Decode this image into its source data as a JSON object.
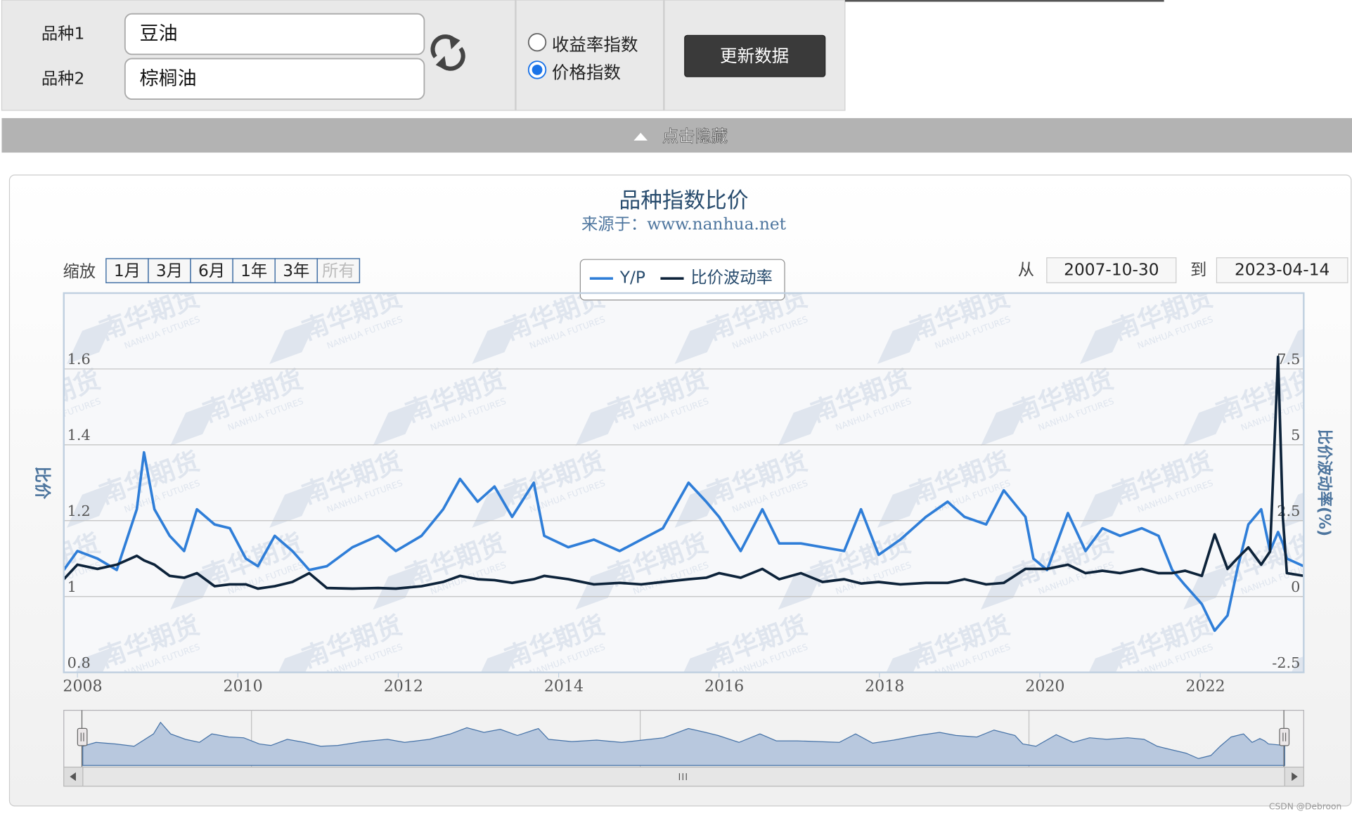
{
  "form": {
    "field_labels": [
      "品种1",
      "品种2"
    ],
    "field_values": [
      "豆油",
      "棕榈油"
    ],
    "index_type": {
      "options": [
        "收益率指数",
        "价格指数"
      ],
      "selected": "价格指数"
    },
    "button": "更新数据",
    "toggle": "点击隐藏"
  },
  "chart_data": {
    "type": "line",
    "title": "品种指数比价",
    "subtitle": "来源于：www.nanhua.net",
    "y_label": "比价",
    "y2_label": "比价波动率(%)",
    "range_selector": {
      "label": "缩放",
      "buttons": [
        "1月",
        "3月",
        "6月",
        "1年",
        "3年",
        "所有"
      ],
      "selected": "所有",
      "from_label": "从",
      "from": "2007-10-30",
      "to_label": "到",
      "to": "2023-04-14"
    },
    "legend": "top-center",
    "grid": true,
    "xlim": [
      2007.83,
      2023.29
    ],
    "xticks": [
      2008,
      2010,
      2012,
      2014,
      2016,
      2018,
      2020,
      2022
    ],
    "ylim": [
      0.8,
      1.8
    ],
    "yticks": [
      0.8,
      1,
      1.2,
      1.4,
      1.6
    ],
    "y2lim": [
      -2.5,
      10
    ],
    "y2ticks": [
      -2.5,
      0,
      2.5,
      5,
      7.5
    ],
    "navigator_xticks": [
      2010,
      2015,
      2020
    ],
    "watermark": {
      "cn": "南华期货",
      "en": "NANHUA FUTURES"
    },
    "x": [
      2007.83,
      2008.0,
      2008.25,
      2008.49,
      2008.74,
      2008.83,
      2008.96,
      2009.15,
      2009.33,
      2009.49,
      2009.71,
      2009.9,
      2010.1,
      2010.25,
      2010.46,
      2010.68,
      2010.89,
      2011.11,
      2011.43,
      2011.75,
      2011.97,
      2012.29,
      2012.56,
      2012.77,
      2012.99,
      2013.2,
      2013.42,
      2013.69,
      2013.82,
      2014.12,
      2014.44,
      2014.76,
      2015.03,
      2015.3,
      2015.62,
      2015.84,
      2016.0,
      2016.27,
      2016.54,
      2016.75,
      2017.02,
      2017.29,
      2017.56,
      2017.77,
      2017.99,
      2018.26,
      2018.58,
      2018.85,
      2019.06,
      2019.33,
      2019.55,
      2019.82,
      2019.92,
      2020.09,
      2020.35,
      2020.57,
      2020.78,
      2021.0,
      2021.27,
      2021.48,
      2021.65,
      2021.81,
      2022.02,
      2022.18,
      2022.34,
      2022.46,
      2022.6,
      2022.76,
      2022.87,
      2022.97,
      2023.03,
      2023.08,
      2023.29
    ],
    "series": [
      {
        "name": "Y/P",
        "color": "#2f7ed8",
        "values": [
          1.07,
          1.12,
          1.1,
          1.07,
          1.23,
          1.38,
          1.23,
          1.16,
          1.12,
          1.23,
          1.19,
          1.18,
          1.1,
          1.08,
          1.16,
          1.12,
          1.07,
          1.08,
          1.13,
          1.16,
          1.12,
          1.16,
          1.23,
          1.31,
          1.25,
          1.29,
          1.21,
          1.3,
          1.16,
          1.13,
          1.15,
          1.12,
          1.15,
          1.18,
          1.3,
          1.25,
          1.21,
          1.12,
          1.23,
          1.14,
          1.14,
          1.13,
          1.12,
          1.23,
          1.11,
          1.15,
          1.21,
          1.25,
          1.21,
          1.19,
          1.28,
          1.21,
          1.1,
          1.07,
          1.22,
          1.12,
          1.18,
          1.16,
          1.18,
          1.16,
          1.07,
          1.03,
          0.98,
          0.91,
          0.95,
          1.07,
          1.19,
          1.23,
          1.12,
          1.17,
          1.14,
          1.1,
          1.08
        ]
      },
      {
        "name": "比价波动率",
        "color": "#0d233a",
        "axis": "y2",
        "values": [
          0.57,
          1.05,
          0.91,
          1.05,
          1.34,
          1.19,
          1.05,
          0.68,
          0.62,
          0.77,
          0.34,
          0.4,
          0.4,
          0.26,
          0.34,
          0.48,
          0.77,
          0.28,
          0.26,
          0.28,
          0.26,
          0.34,
          0.48,
          0.68,
          0.57,
          0.54,
          0.45,
          0.57,
          0.68,
          0.57,
          0.4,
          0.45,
          0.4,
          0.48,
          0.57,
          0.62,
          0.77,
          0.62,
          0.91,
          0.57,
          0.77,
          0.48,
          0.57,
          0.43,
          0.48,
          0.4,
          0.45,
          0.45,
          0.57,
          0.4,
          0.45,
          0.91,
          0.91,
          0.91,
          1.05,
          0.77,
          0.85,
          0.77,
          0.91,
          0.77,
          0.77,
          0.85,
          0.68,
          2.05,
          0.91,
          1.25,
          1.62,
          1.05,
          1.48,
          7.9,
          2.6,
          0.77,
          0.68
        ]
      }
    ]
  },
  "footer_credit": "CSDN @Debroon"
}
